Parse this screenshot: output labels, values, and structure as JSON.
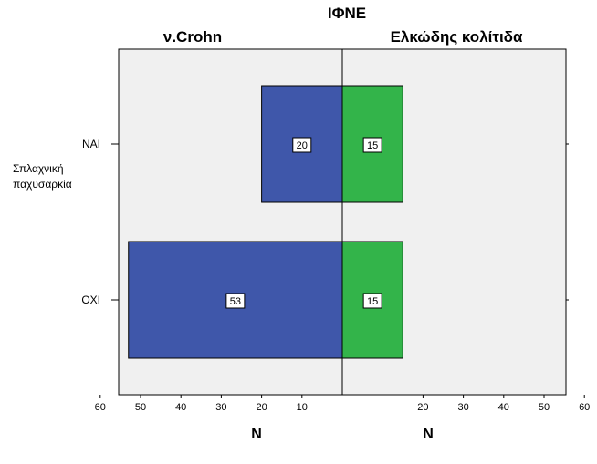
{
  "chart_data": {
    "type": "bar",
    "orientation": "horizontal-back-to-back",
    "title": "ΙΦΝΕ",
    "panel_titles": [
      "ν.Crohn",
      "Ελκώδης κολίτιδα"
    ],
    "ylabel": "Σπλαχνική παχυσαρκία",
    "xlabel_left": "N",
    "xlabel_right": "N",
    "categories": [
      "ΝΑΙ",
      "ΟΧΙ"
    ],
    "series": [
      {
        "name": "ν.Crohn",
        "values": [
          20,
          53
        ],
        "color": "#3f57aa",
        "side": "left"
      },
      {
        "name": "Ελκώδης κολίτιδα",
        "values": [
          15,
          15
        ],
        "color": "#33b44a",
        "side": "right"
      }
    ],
    "xlim": [
      0,
      60
    ],
    "left_ticks": [
      "60",
      "50",
      "40",
      "30",
      "20",
      "10"
    ],
    "right_ticks": [
      "20",
      "30",
      "40",
      "50",
      "60"
    ],
    "plot_background": "#f0f0f0",
    "grid": false
  }
}
